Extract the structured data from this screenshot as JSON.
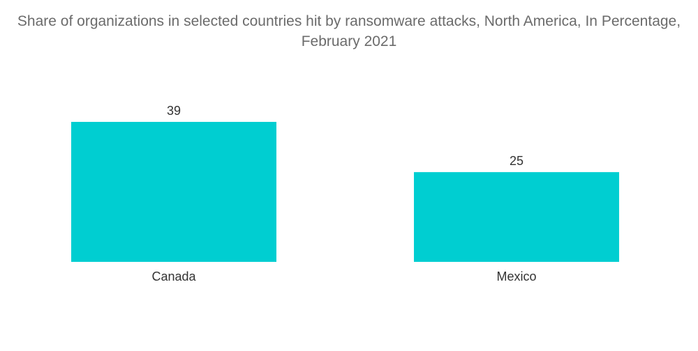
{
  "chart_data": {
    "type": "bar",
    "title": "Share of organizations in selected countries hit by ransomware attacks, North America, In Percentage, February 2021",
    "categories": [
      "Canada",
      "Mexico"
    ],
    "values": [
      39,
      25
    ],
    "data_labels": [
      "39",
      "25"
    ],
    "xlabel": "",
    "ylabel": "",
    "ylim": [
      0,
      39
    ],
    "grid": false,
    "legend": "none",
    "bar_color": "#00ced1"
  }
}
